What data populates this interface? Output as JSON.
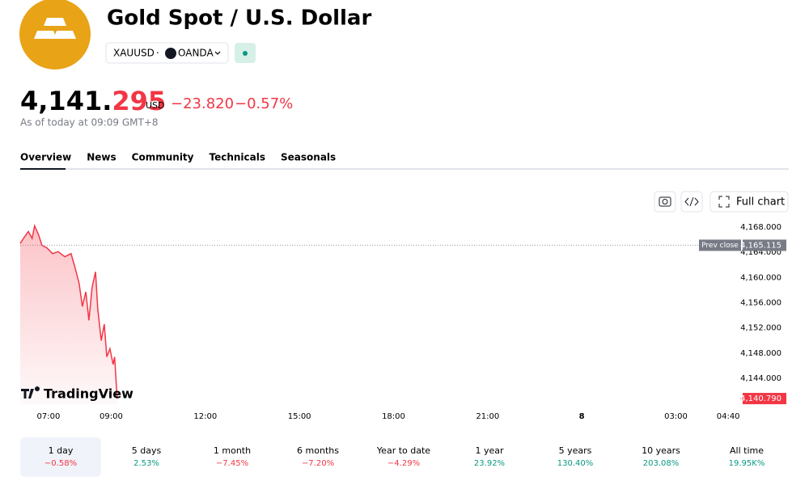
{
  "header": {
    "title": "Gold Spot / U.S. Dollar",
    "symbol": "XAUUSD",
    "exchange": "OANDA",
    "price_main": "4,141.",
    "price_fraction": "295",
    "currency": "USD",
    "change": "−23.820",
    "change_percent": "−0.57%",
    "as_of": "As of today at 09:09 GMT+8"
  },
  "tabs": [
    "Overview",
    "News",
    "Community",
    "Technicals",
    "Seasonals"
  ],
  "toolbar": {
    "full_chart": "Full chart"
  },
  "logo": "TradingView",
  "chart_data": {
    "type": "line",
    "color": "#f23645",
    "x": [
      6.1,
      6.23,
      6.36,
      6.48,
      6.56,
      6.69,
      6.79,
      6.95,
      7.13,
      7.31,
      7.52,
      7.72,
      7.85,
      7.98,
      8.08,
      8.19,
      8.29,
      8.39,
      8.5,
      8.57,
      8.68,
      8.78,
      8.86,
      8.96,
      9.06,
      9.11,
      9.19
    ],
    "values": [
      4165.4,
      4166.4,
      4167.3,
      4166.2,
      4168.2,
      4166.7,
      4165.1,
      4164.7,
      4163.8,
      4164.1,
      4163.3,
      4163.8,
      4161.5,
      4159.0,
      4155.4,
      4157.7,
      4153.2,
      4158.4,
      4160.9,
      4155.1,
      4150.0,
      4152.6,
      4147.4,
      4148.7,
      4146.2,
      4147.4,
      4140.79
    ],
    "xlim": [
      6.1,
      29.05
    ],
    "xticks": [
      {
        "value": 7,
        "label": "07:00"
      },
      {
        "value": 9,
        "label": "09:00"
      },
      {
        "value": 12,
        "label": "12:00"
      },
      {
        "value": 15,
        "label": "15:00"
      },
      {
        "value": 18,
        "label": "18:00"
      },
      {
        "value": 21,
        "label": "21:00"
      },
      {
        "value": 24,
        "label": "8"
      },
      {
        "value": 27,
        "label": "03:00"
      },
      {
        "value": 28.667,
        "label": "04:40"
      }
    ],
    "ylim": [
      4139.9,
      4169.4
    ],
    "yticks": [
      {
        "value": 4144,
        "label": "4,144.000"
      },
      {
        "value": 4148,
        "label": "4,148.000"
      },
      {
        "value": 4152,
        "label": "4,152.000"
      },
      {
        "value": 4156,
        "label": "4,156.000"
      },
      {
        "value": 4160,
        "label": "4,160.000"
      },
      {
        "value": 4164,
        "label": "4,164.000"
      },
      {
        "value": 4168,
        "label": "4,168.000"
      }
    ],
    "prev_close_label": "Prev close",
    "prev_close": {
      "value": 4165.115,
      "label": "4,165.115"
    },
    "last_price": {
      "value": 4140.79,
      "label": "4,140.790"
    }
  },
  "periods": [
    {
      "label": "1 day",
      "change": "−0.58%",
      "direction": "down",
      "selected": true
    },
    {
      "label": "5 days",
      "change": "2.53%",
      "direction": "up"
    },
    {
      "label": "1 month",
      "change": "−7.45%",
      "direction": "down"
    },
    {
      "label": "6 months",
      "change": "−7.20%",
      "direction": "down"
    },
    {
      "label": "Year to date",
      "change": "−4.29%",
      "direction": "down"
    },
    {
      "label": "1 year",
      "change": "23.92%",
      "direction": "up"
    },
    {
      "label": "5 years",
      "change": "130.40%",
      "direction": "up"
    },
    {
      "label": "10 years",
      "change": "203.08%",
      "direction": "up"
    },
    {
      "label": "All time",
      "change": "19.95K%",
      "direction": "up"
    }
  ]
}
